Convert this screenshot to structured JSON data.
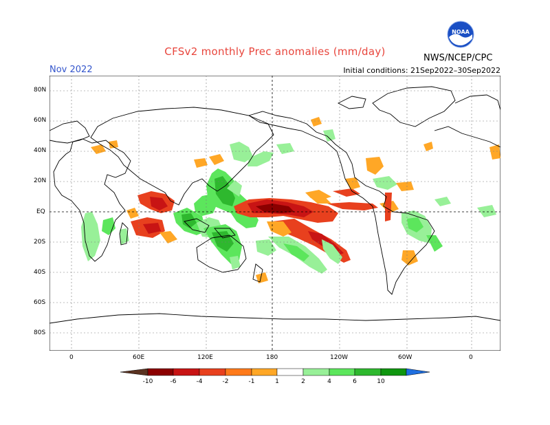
{
  "header": {
    "title": "CFSv2 monthly Prec anomalies (mm/day)",
    "month": "Nov 2022",
    "initial_conditions": "Initial conditions: 21Sep2022–30Sep2022",
    "agency": "NWS/NCEP/CPC",
    "logo_text": "NOAA"
  },
  "axes": {
    "lat_labels": [
      "80N",
      "60N",
      "40N",
      "20N",
      "EQ",
      "20S",
      "40S",
      "60S",
      "80S"
    ],
    "lon_labels": [
      "0",
      "60E",
      "120E",
      "180",
      "120W",
      "60W",
      "0"
    ]
  },
  "colorbar": {
    "labels": [
      "-10",
      "-6",
      "-4",
      "-2",
      "-1",
      "1",
      "2",
      "4",
      "6",
      "10"
    ],
    "colors": [
      "#5a3220",
      "#8b0000",
      "#c81414",
      "#e8401e",
      "#ff7a1a",
      "#ffa726",
      "#ffffff",
      "#98f098",
      "#5ce65c",
      "#2eb82e",
      "#0f960f",
      "#1f6fe0"
    ]
  }
}
